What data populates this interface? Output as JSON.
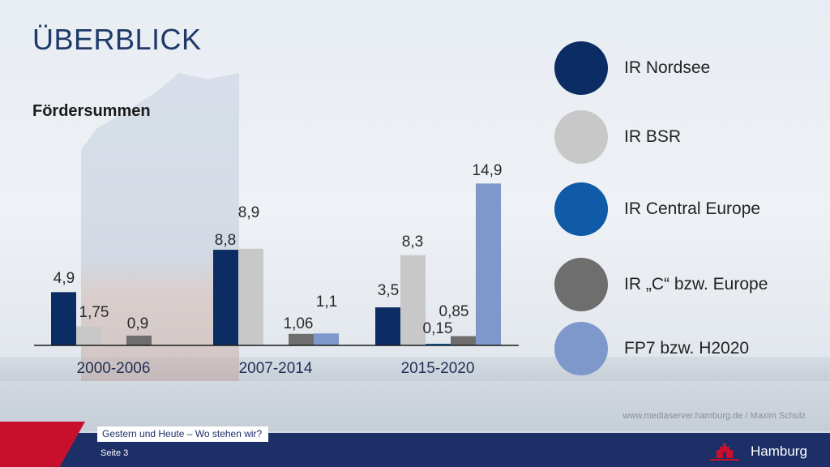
{
  "slide": {
    "title": "ÜBERBLICK",
    "subtitle": "Fördersummen",
    "credit": "www.mediaserver.hamburg.de / Maxim Schulz",
    "footer_tag": "Gestern und Heute – Wo stehen wir?",
    "page_label": "Seite 3",
    "logo_text": "Hamburg"
  },
  "legend": [
    {
      "label": "IR Nordsee",
      "color": "#0b2d64"
    },
    {
      "label": "IR BSR",
      "color": "#c8c8c8"
    },
    {
      "label": "IR Central Europe",
      "color": "#0f5ba7"
    },
    {
      "label": "IR „C“ bzw. Europe",
      "color": "#6e6e6e"
    },
    {
      "label": "FP7 bzw. H2020",
      "color": "#7e98cc"
    }
  ],
  "chart_data": {
    "type": "bar",
    "categories": [
      "2000-2006",
      "2007-2014",
      "2015-2020"
    ],
    "series": [
      {
        "name": "IR Nordsee",
        "color": "#0b2d64",
        "values": [
          4.9,
          8.8,
          3.5
        ],
        "labels": [
          "4,9",
          "8,8",
          "3,5"
        ]
      },
      {
        "name": "IR BSR",
        "color": "#c8c8c8",
        "values": [
          1.75,
          8.9,
          8.3
        ],
        "labels": [
          "1,75",
          "8,9",
          "8,3"
        ]
      },
      {
        "name": "IR Central Europe",
        "color": "#0f5ba7",
        "values": [
          null,
          null,
          0.15
        ],
        "labels": [
          "",
          "",
          "0,15"
        ]
      },
      {
        "name": "IR „C“ bzw. Europe",
        "color": "#6e6e6e",
        "values": [
          0.9,
          1.06,
          0.85
        ],
        "labels": [
          "0,9",
          "1,06",
          "0,85"
        ]
      },
      {
        "name": "FP7 bzw. H2020",
        "color": "#7e98cc",
        "values": [
          null,
          1.1,
          14.9
        ],
        "labels": [
          "",
          "1,1",
          "14,9"
        ]
      }
    ],
    "title": "",
    "xlabel": "",
    "ylabel": "",
    "ylim": [
      0,
      15
    ],
    "grid": false,
    "legend_position": "right"
  }
}
